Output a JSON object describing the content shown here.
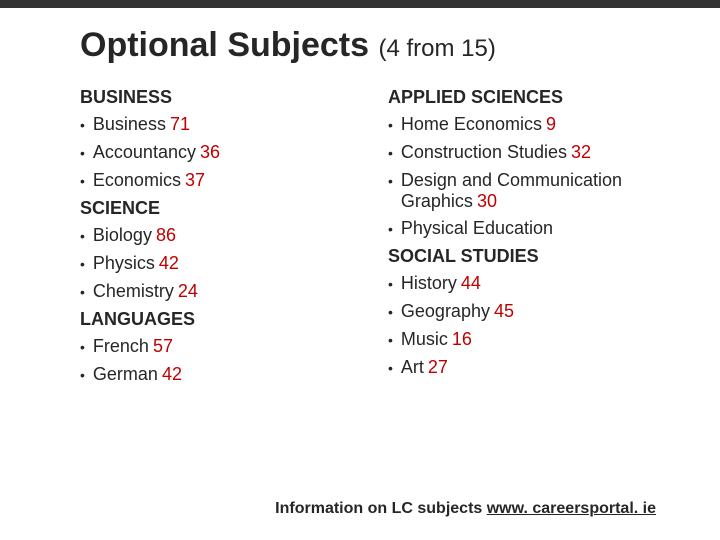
{
  "title_main": "Optional Subjects",
  "title_suffix": "(4 from 15)",
  "left": {
    "business": {
      "heading": "BUSINESS",
      "items": [
        {
          "label": "Business",
          "num": "71"
        },
        {
          "label": "Accountancy",
          "num": "36"
        },
        {
          "label": "Economics",
          "num": "37"
        }
      ]
    },
    "science": {
      "heading": "SCIENCE",
      "items": [
        {
          "label": "Biology",
          "num": "86"
        },
        {
          "label": "Physics",
          "num": "42"
        },
        {
          "label": "Chemistry",
          "num": "24"
        }
      ]
    },
    "languages": {
      "heading": "LANGUAGES",
      "items": [
        {
          "label": "French",
          "num": "57"
        },
        {
          "label": "German",
          "num": "42"
        }
      ]
    }
  },
  "right": {
    "applied": {
      "heading": "APPLIED SCIENCES",
      "items": [
        {
          "label": "Home Economics",
          "num": "9"
        },
        {
          "label": "Construction Studies",
          "num": "32"
        },
        {
          "label": "Design and Communication Graphics",
          "num": "30"
        },
        {
          "label": "Physical Education",
          "num": ""
        }
      ]
    },
    "social": {
      "heading": "SOCIAL STUDIES",
      "items": [
        {
          "label": "History",
          "num": "44"
        },
        {
          "label": "Geography",
          "num": "45"
        },
        {
          "label": "Music",
          "num": "16"
        },
        {
          "label": "Art",
          "num": "27"
        }
      ]
    }
  },
  "footer": {
    "prefix": "Information on LC subjects ",
    "link": "www. careersportal. ie"
  },
  "colors": {
    "number_color": "#c00000",
    "text_color": "#262626",
    "top_bar": "#333333",
    "background": "#ffffff"
  },
  "typography": {
    "title_fontsize": 34,
    "suffix_fontsize": 24,
    "body_fontsize": 18,
    "footer_fontsize": 16
  }
}
